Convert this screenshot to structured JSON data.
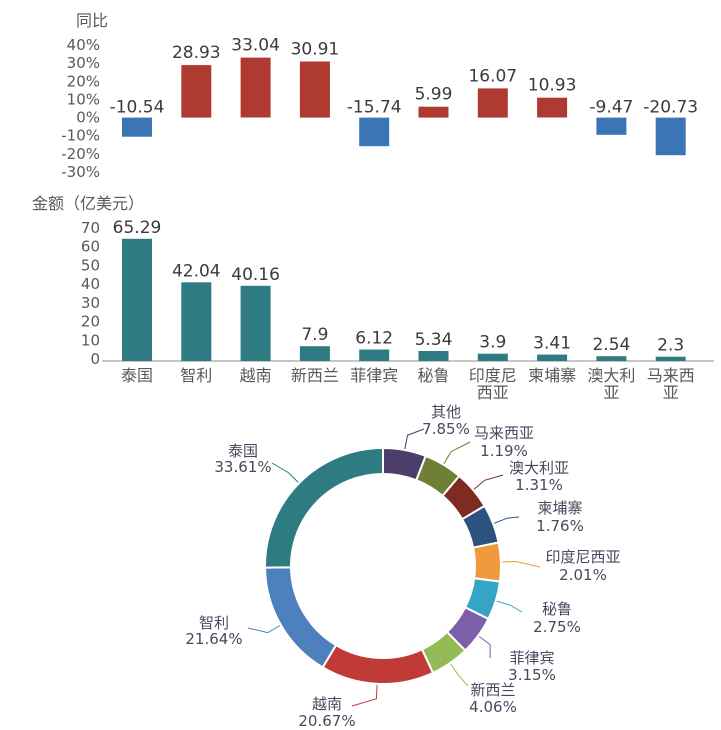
{
  "figure": {
    "background": "#FFFFFF",
    "text_colors": {
      "axis": "#595959",
      "data_label": "#3B3B3B",
      "donut_label": "#474A5E"
    }
  },
  "chart_data": [
    {
      "type": "bar",
      "title": "同比",
      "categories": [
        "泰国",
        "智利",
        "越南",
        "新西兰",
        "菲律宾",
        "秘鲁",
        "印度尼西亚",
        "柬埔寨",
        "澳大利亚",
        "马来西亚"
      ],
      "values": [
        -10.54,
        28.93,
        33.04,
        30.91,
        -15.74,
        5.99,
        16.07,
        10.93,
        -9.47,
        -20.73
      ],
      "labels": [
        "-10.54",
        "28.93",
        "33.04",
        "30.91",
        "-15.74",
        "5.99",
        "16.07",
        "10.93",
        "-9.47",
        "-20.73"
      ],
      "yticks": [
        "40%",
        "30%",
        "20%",
        "10%",
        "0%",
        "-10%",
        "-20%",
        "-30%"
      ],
      "ylim": [
        -30,
        40
      ],
      "grid": false,
      "legend": "none",
      "x_axis_labels": "hidden",
      "positive_color": "#AF3A31",
      "negative_color": "#3C75B5"
    },
    {
      "type": "bar",
      "title": "金额（亿美元）",
      "categories": [
        "泰国",
        "智利",
        "越南",
        "新西兰",
        "菲律宾",
        "秘鲁",
        "印度尼西亚",
        "柬埔寨",
        "澳大利亚",
        "马来西亚"
      ],
      "values": [
        65.29,
        42.04,
        40.16,
        7.9,
        6.12,
        5.34,
        3.9,
        3.41,
        2.54,
        2.3
      ],
      "labels": [
        "65.29",
        "42.04",
        "40.16",
        "7.9",
        "6.12",
        "5.34",
        "3.9",
        "3.41",
        "2.54",
        "2.3"
      ],
      "yticks": [
        "70",
        "60",
        "50",
        "40",
        "30",
        "20",
        "10",
        "0"
      ],
      "ylim": [
        0,
        70
      ],
      "grid": false,
      "legend": "none",
      "bar_color": "#2E7B83",
      "axis_line_color": "#B3B3B3"
    },
    {
      "type": "pie",
      "style": "donut",
      "start_angle": "top",
      "direction": "clockwise",
      "slices": [
        {
          "label": "其他",
          "value": 7.85,
          "pct_label": "7.85%",
          "color": "#4C3D69"
        },
        {
          "label": "马来西亚",
          "value": 1.19,
          "pct_label": "1.19%",
          "color": "#6F7F33"
        },
        {
          "label": "澳大利亚",
          "value": 1.31,
          "pct_label": "1.31%",
          "color": "#7E2B23"
        },
        {
          "label": "柬埔寨",
          "value": 1.76,
          "pct_label": "1.76%",
          "color": "#2D527F"
        },
        {
          "label": "印度尼西亚",
          "value": 2.01,
          "pct_label": "2.01%",
          "color": "#F0993D"
        },
        {
          "label": "秘鲁",
          "value": 2.75,
          "pct_label": "2.75%",
          "color": "#36A5C5"
        },
        {
          "label": "菲律宾",
          "value": 3.15,
          "pct_label": "3.15%",
          "color": "#7B5FA9"
        },
        {
          "label": "新西兰",
          "value": 4.06,
          "pct_label": "4.06%",
          "color": "#94BA55"
        },
        {
          "label": "越南",
          "value": 20.67,
          "pct_label": "20.67%",
          "color": "#C03B37"
        },
        {
          "label": "智利",
          "value": 21.64,
          "pct_label": "21.64%",
          "color": "#4C81BD"
        },
        {
          "label": "泰国",
          "value": 33.61,
          "pct_label": "33.61%",
          "color": "#2E7B82"
        }
      ]
    }
  ]
}
